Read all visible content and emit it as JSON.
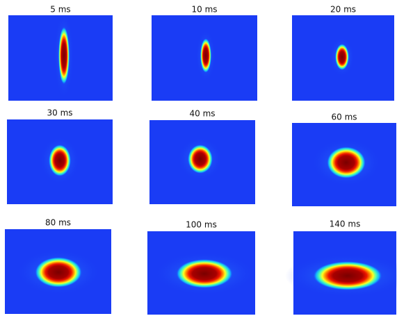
{
  "panels": [
    {
      "label": "5 ms"
    },
    {
      "label": "10 ms"
    },
    {
      "label": "20 ms"
    },
    {
      "label": "30 ms"
    },
    {
      "label": "40 ms"
    },
    {
      "label": "60 ms"
    },
    {
      "label": "80 ms"
    },
    {
      "label": "100 ms"
    },
    {
      "label": "140 ms"
    }
  ]
}
